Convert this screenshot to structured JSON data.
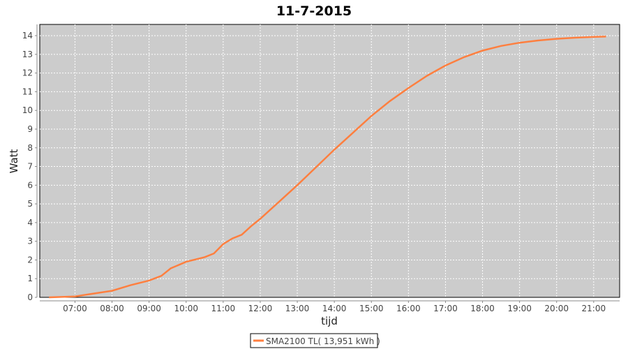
{
  "chart_data": {
    "type": "line",
    "title": "11-7-2015",
    "xlabel": "tijd",
    "ylabel": "Watt",
    "ylim": [
      0,
      14.6
    ],
    "xlim": [
      "06:03",
      "21:42"
    ],
    "grid": true,
    "plot_background": "#cccccc",
    "legend_position": "bottom",
    "x_ticks": [
      "07:00",
      "08:00",
      "09:00",
      "10:00",
      "11:00",
      "12:00",
      "13:00",
      "14:00",
      "15:00",
      "16:00",
      "17:00",
      "18:00",
      "19:00",
      "20:00",
      "21:00"
    ],
    "y_ticks": [
      0,
      1,
      2,
      3,
      4,
      5,
      6,
      7,
      8,
      9,
      10,
      11,
      12,
      13,
      14
    ],
    "series": [
      {
        "name": "SMA2100 TL( 13,951 kWh )",
        "color": "#ff7f3f",
        "x": [
          "06:18",
          "07:00",
          "07:30",
          "08:00",
          "08:30",
          "09:00",
          "09:20",
          "09:35",
          "10:00",
          "10:30",
          "10:45",
          "11:00",
          "11:15",
          "11:30",
          "11:45",
          "12:00",
          "12:30",
          "13:00",
          "13:30",
          "14:00",
          "14:30",
          "15:00",
          "15:30",
          "16:00",
          "16:30",
          "17:00",
          "17:30",
          "18:00",
          "18:30",
          "19:00",
          "19:30",
          "20:00",
          "20:30",
          "21:00",
          "21:20"
        ],
        "y": [
          0,
          0.05,
          0.2,
          0.35,
          0.65,
          0.9,
          1.15,
          1.55,
          1.9,
          2.15,
          2.35,
          2.85,
          3.15,
          3.35,
          3.8,
          4.2,
          5.1,
          6.0,
          6.95,
          7.9,
          8.8,
          9.7,
          10.5,
          11.2,
          11.85,
          12.4,
          12.85,
          13.2,
          13.45,
          13.62,
          13.74,
          13.83,
          13.89,
          13.93,
          13.95
        ]
      }
    ]
  }
}
